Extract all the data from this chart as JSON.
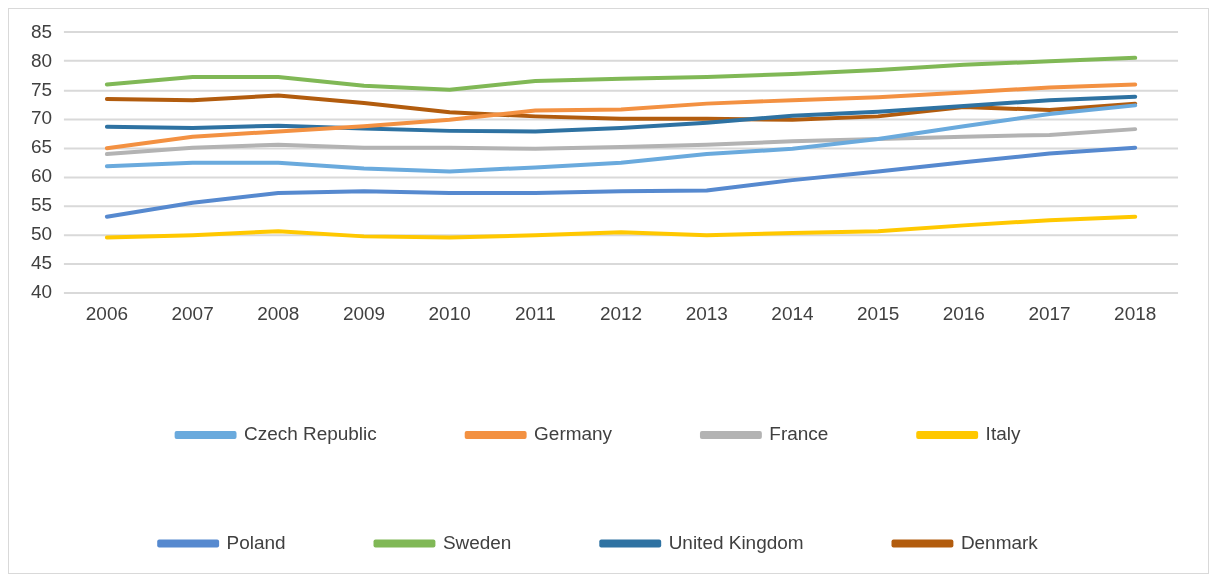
{
  "chart_data": {
    "type": "line",
    "categories": [
      "2006",
      "2007",
      "2008",
      "2009",
      "2010",
      "2011",
      "2012",
      "2013",
      "2014",
      "2015",
      "2016",
      "2017",
      "2018"
    ],
    "series": [
      {
        "name": "Czech Republic",
        "color": "#6aaadd",
        "values": [
          61.9,
          62.5,
          62.5,
          61.5,
          61.0,
          61.7,
          62.5,
          64.0,
          64.9,
          66.6,
          68.8,
          70.9,
          72.4
        ]
      },
      {
        "name": "Germany",
        "color": "#f39142",
        "values": [
          65.0,
          67.0,
          67.9,
          68.8,
          69.9,
          71.5,
          71.7,
          72.7,
          73.3,
          73.8,
          74.6,
          75.5,
          76.0
        ]
      },
      {
        "name": "France",
        "color": "#b3b3b3",
        "values": [
          64.0,
          65.1,
          65.6,
          65.1,
          65.1,
          64.9,
          65.2,
          65.6,
          66.2,
          66.6,
          67.0,
          67.3,
          68.3
        ]
      },
      {
        "name": "Italy",
        "color": "#ffc800",
        "values": [
          49.6,
          50.0,
          50.7,
          49.8,
          49.6,
          50.0,
          50.5,
          50.0,
          50.4,
          50.7,
          51.7,
          52.6,
          53.2
        ]
      },
      {
        "name": "Poland",
        "color": "#5689cf",
        "values": [
          53.2,
          55.6,
          57.3,
          57.6,
          57.3,
          57.3,
          57.6,
          57.7,
          59.5,
          61.0,
          62.6,
          64.1,
          65.1
        ]
      },
      {
        "name": "Sweden",
        "color": "#80b856",
        "values": [
          76.0,
          77.3,
          77.3,
          75.8,
          75.1,
          76.6,
          77.0,
          77.3,
          77.8,
          78.5,
          79.4,
          80.0,
          80.6
        ]
      },
      {
        "name": "United Kingdom",
        "color": "#2e72a2",
        "values": [
          68.7,
          68.5,
          68.9,
          68.4,
          68.0,
          67.9,
          68.5,
          69.4,
          70.6,
          71.3,
          72.3,
          73.3,
          73.9
        ]
      },
      {
        "name": "Denmark",
        "color": "#b25c0e",
        "values": [
          73.5,
          73.3,
          74.1,
          72.8,
          71.2,
          70.5,
          70.1,
          70.1,
          69.9,
          70.5,
          72.1,
          71.6,
          72.7
        ]
      }
    ],
    "ylim": [
      40,
      85
    ],
    "yticks": [
      40,
      45,
      50,
      55,
      60,
      65,
      70,
      75,
      80,
      85
    ],
    "grid": "y",
    "legend": "bottom",
    "marker": "none",
    "line_style": "solid"
  }
}
